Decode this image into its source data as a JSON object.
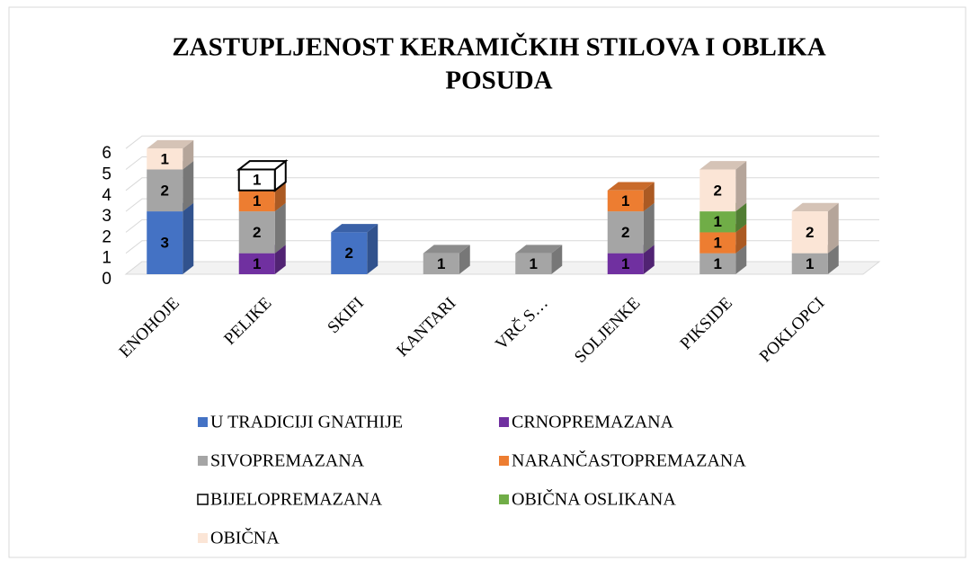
{
  "chart_data": {
    "type": "bar3d_stacked",
    "title": "ZASTUPLJENOST KERAMIČKIH STILOVA I OBLIKA POSUDA",
    "categories": [
      "ENOHOJE",
      "PELIKE",
      "SKIFI",
      "KANTARI",
      "VRČ S…",
      "SOLJENKE",
      "PIKSIDE",
      "POKLOPCI"
    ],
    "series": [
      {
        "name": "U TRADICIJI GNATHIJE",
        "color": "#4472c4",
        "values": [
          3,
          null,
          2,
          null,
          null,
          null,
          null,
          null
        ]
      },
      {
        "name": "CRNOPREMAZANA",
        "color": "#7030a0",
        "values": [
          null,
          1,
          null,
          null,
          null,
          1,
          null,
          null
        ]
      },
      {
        "name": "SIVOPREMAZANA",
        "color": "#a5a5a5",
        "values": [
          2,
          2,
          null,
          1,
          1,
          2,
          1,
          1
        ]
      },
      {
        "name": "NARANČASTOPREMAZANA",
        "color": "#ed7d31",
        "values": [
          null,
          1,
          null,
          null,
          null,
          1,
          1,
          null
        ]
      },
      {
        "name": "BIJELOPREMAZANA",
        "color": "#ffffff",
        "values": [
          null,
          1,
          null,
          null,
          null,
          null,
          null,
          null
        ]
      },
      {
        "name": "OBIČNA OSLIKANA",
        "color": "#70ad47",
        "values": [
          null,
          null,
          null,
          null,
          null,
          null,
          1,
          null
        ]
      },
      {
        "name": "OBIČNA",
        "color": "#fbe5d6",
        "values": [
          1,
          null,
          null,
          null,
          null,
          null,
          2,
          2
        ]
      }
    ],
    "ylim": [
      0,
      6
    ],
    "yticks": [
      0,
      1,
      2,
      3,
      4,
      5,
      6
    ],
    "grid": true,
    "legend": "bottom"
  }
}
